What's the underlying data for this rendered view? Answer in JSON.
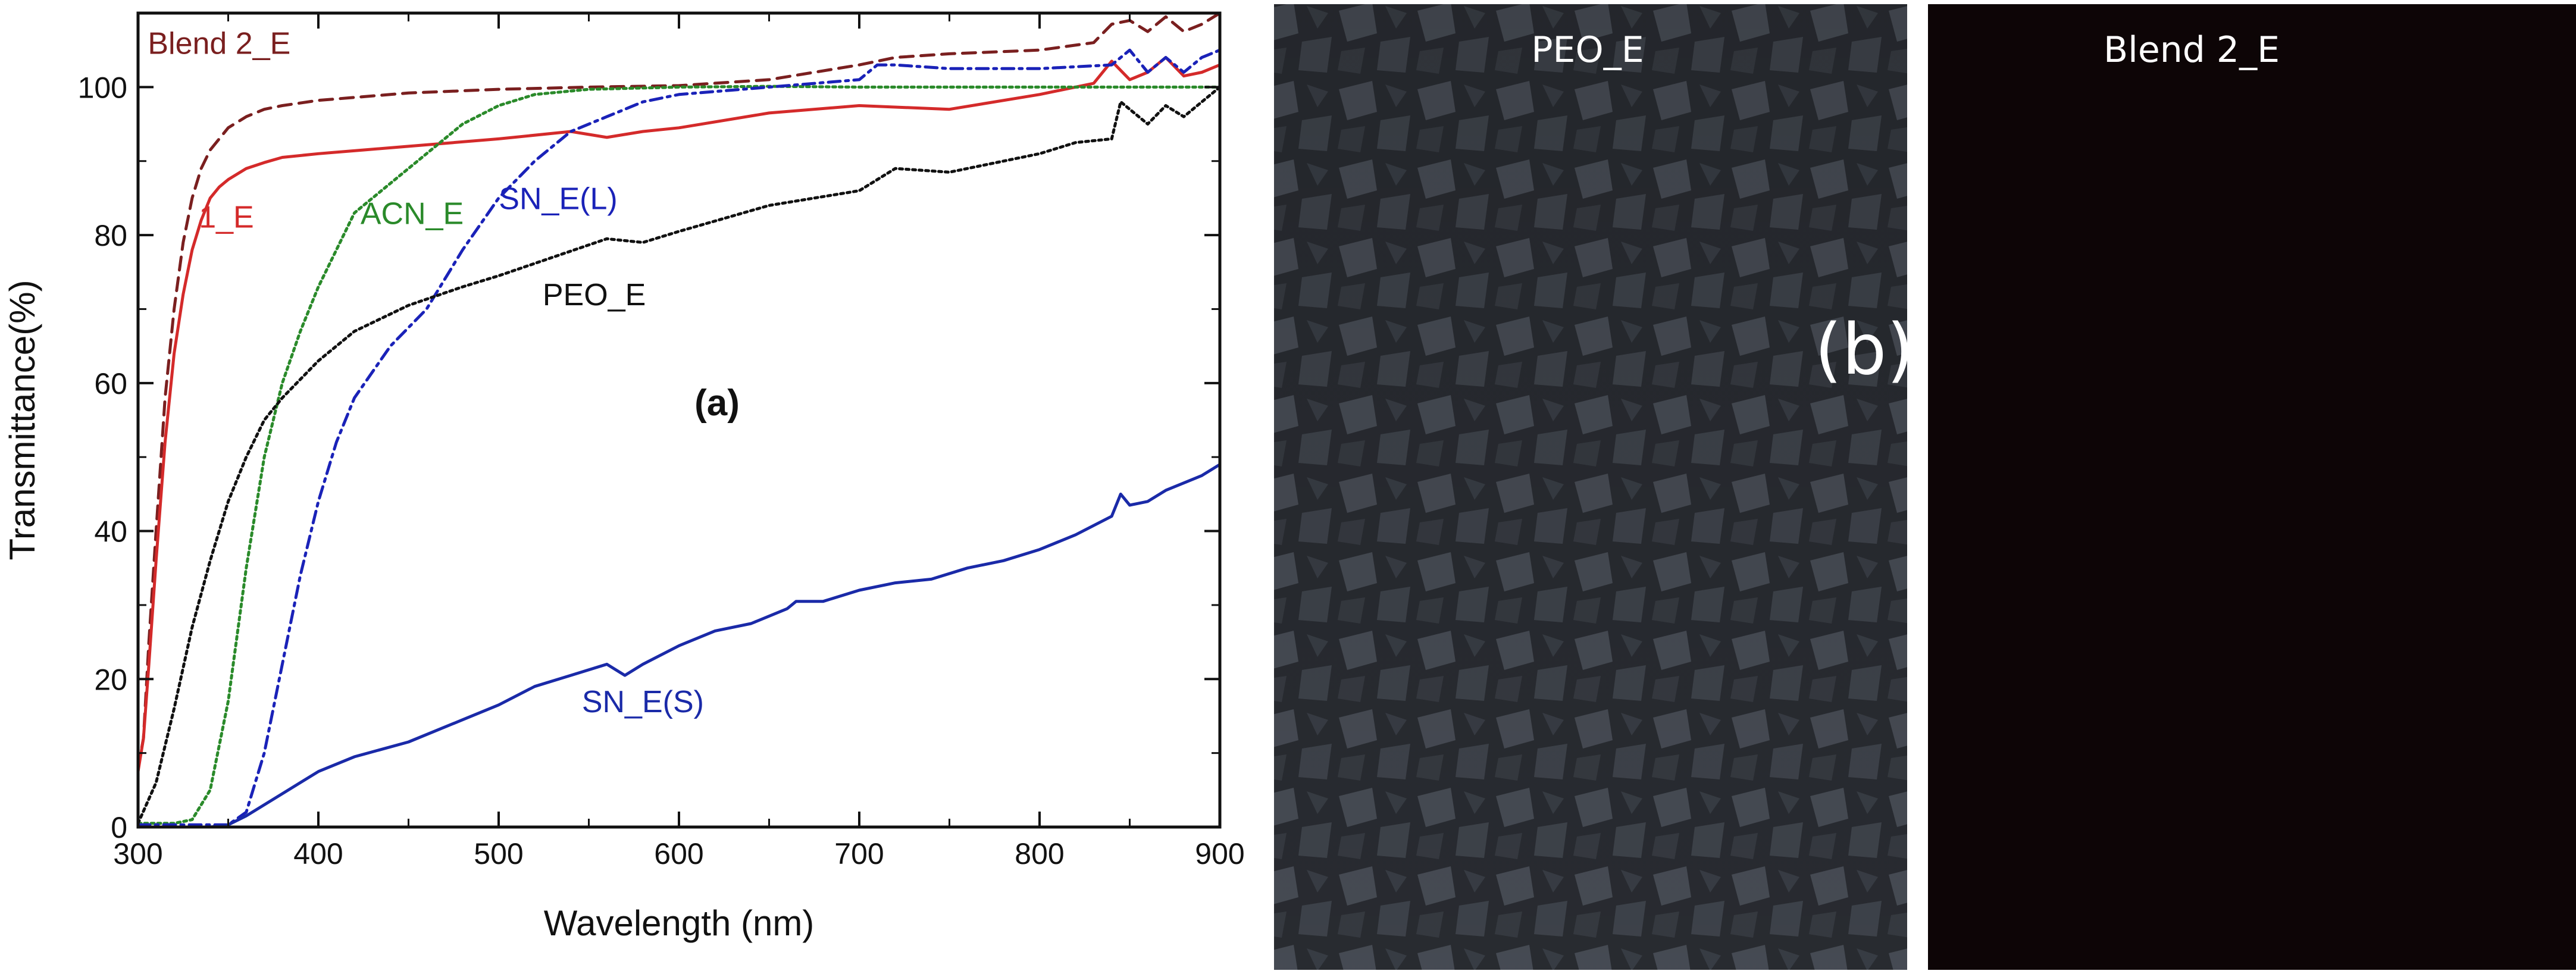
{
  "chart_data": {
    "type": "line",
    "panel_label": "(a)",
    "title": "",
    "xlabel": "Wavelength (nm)",
    "ylabel": "Transmittance(%)",
    "xlim": [
      300,
      900
    ],
    "ylim": [
      0,
      110
    ],
    "xticks": [
      300,
      400,
      500,
      600,
      700,
      800,
      900
    ],
    "yticks": [
      0,
      20,
      40,
      60,
      80,
      100
    ],
    "grid": false,
    "legend": "inline annotations",
    "series": [
      {
        "name": "Blend 2_E",
        "color": "#7a1f1f",
        "dash": "dashed",
        "x": [
          300,
          303,
          306,
          310,
          315,
          320,
          325,
          330,
          335,
          340,
          345,
          350,
          360,
          370,
          380,
          400,
          450,
          500,
          550,
          600,
          650,
          700,
          720,
          750,
          800,
          830,
          840,
          850,
          860,
          870,
          880,
          890,
          900
        ],
        "y": [
          8,
          12,
          25,
          40,
          58,
          70,
          79,
          85,
          89,
          91.5,
          93,
          94.5,
          96,
          97,
          97.5,
          98.2,
          99.2,
          99.7,
          100,
          100.2,
          101,
          103,
          104,
          104.5,
          105,
          106,
          108.5,
          109,
          107.5,
          109.5,
          107.5,
          108.5,
          110
        ]
      },
      {
        "name": "1_E",
        "color": "#d42a2a",
        "dash": "solid",
        "x": [
          300,
          303,
          306,
          310,
          315,
          320,
          325,
          330,
          335,
          340,
          345,
          350,
          360,
          370,
          380,
          400,
          450,
          500,
          540,
          560,
          580,
          600,
          650,
          700,
          750,
          800,
          830,
          840,
          850,
          860,
          870,
          880,
          890,
          900
        ],
        "y": [
          7.5,
          12,
          22,
          36,
          52,
          64,
          72,
          78,
          82,
          85,
          86.5,
          87.5,
          89,
          89.8,
          90.5,
          91,
          92,
          93,
          94,
          93.2,
          94,
          94.5,
          96.5,
          97.5,
          97,
          99,
          100.5,
          103.5,
          101,
          102,
          104,
          101.5,
          102,
          103
        ]
      },
      {
        "name": "ACN_E",
        "color": "#2a8a2a",
        "dash": "dotted",
        "x": [
          300,
          320,
          330,
          340,
          350,
          360,
          370,
          380,
          390,
          400,
          410,
          420,
          440,
          460,
          480,
          500,
          520,
          550,
          600,
          650,
          700,
          750,
          800,
          850,
          900
        ],
        "y": [
          0.5,
          0.5,
          1,
          5,
          17,
          35,
          50,
          60,
          67,
          73,
          78,
          83,
          87,
          91,
          95,
          97.5,
          99,
          99.7,
          100,
          100.1,
          100,
          100,
          100,
          100,
          100
        ]
      },
      {
        "name": "SN_E(L)",
        "color": "#1a22b8",
        "dash": "dashdot",
        "x": [
          300,
          350,
          360,
          370,
          380,
          390,
          400,
          410,
          420,
          440,
          460,
          480,
          500,
          520,
          540,
          560,
          580,
          600,
          650,
          700,
          710,
          720,
          750,
          800,
          840,
          850,
          860,
          870,
          880,
          890,
          900
        ],
        "y": [
          0.3,
          0.3,
          2,
          10,
          22,
          34,
          44,
          52,
          58,
          65,
          70,
          78,
          85,
          90,
          94,
          96,
          98,
          99,
          100,
          101,
          103,
          103,
          102.5,
          102.5,
          103,
          105,
          102,
          104,
          102,
          104,
          105
        ]
      },
      {
        "name": "PEO_E",
        "color": "#111111",
        "dash": "dotted",
        "x": [
          300,
          310,
          320,
          330,
          340,
          350,
          360,
          370,
          380,
          400,
          420,
          450,
          480,
          500,
          530,
          560,
          580,
          600,
          650,
          700,
          720,
          750,
          800,
          820,
          840,
          845,
          860,
          870,
          880,
          890,
          900
        ],
        "y": [
          0.5,
          6,
          16,
          27,
          36,
          44,
          50,
          55,
          58,
          63,
          67,
          70.5,
          73,
          74.5,
          77,
          79.5,
          79,
          80.5,
          84,
          86,
          89,
          88.5,
          91,
          92.5,
          93,
          98,
          95,
          97.5,
          96,
          98,
          100
        ]
      },
      {
        "name": "SN_E(S)",
        "color": "#1a2aa8",
        "dash": "solid",
        "x": [
          300,
          340,
          350,
          360,
          380,
          400,
          420,
          450,
          480,
          500,
          520,
          540,
          560,
          570,
          580,
          600,
          620,
          640,
          660,
          665,
          680,
          700,
          720,
          740,
          760,
          780,
          800,
          820,
          840,
          845,
          850,
          860,
          870,
          880,
          890,
          900
        ],
        "y": [
          0,
          0,
          0.3,
          1.5,
          4.5,
          7.5,
          9.5,
          11.5,
          14.5,
          16.5,
          19,
          20.5,
          22,
          20.5,
          22,
          24.5,
          26.5,
          27.5,
          29.5,
          30.5,
          30.5,
          32,
          33,
          33.5,
          35,
          36,
          37.5,
          39.5,
          42,
          45,
          43.5,
          44,
          45.5,
          46.5,
          47.5,
          49
        ]
      }
    ],
    "annotations": [
      {
        "text": "Blend 2_E",
        "color": "#7a1f1f",
        "at": [
          345,
          104.5
        ],
        "anchor": "middle"
      },
      {
        "text": "1_E",
        "color": "#d42a2a",
        "at": [
          349,
          81
        ],
        "anchor": "middle"
      },
      {
        "text": "ACN_E",
        "color": "#2a8a2a",
        "at": [
          452,
          81.5
        ],
        "anchor": "middle"
      },
      {
        "text": "SN_E(L)",
        "color": "#1a22b8",
        "at": [
          533,
          83.5
        ],
        "anchor": "middle"
      },
      {
        "text": "PEO_E",
        "color": "#111111",
        "at": [
          553,
          70.5
        ],
        "anchor": "middle"
      },
      {
        "text": "SN_E(S)",
        "color": "#1a2aa8",
        "at": [
          580,
          15.5
        ],
        "anchor": "middle"
      }
    ]
  },
  "photos": {
    "panel_label": "(b)",
    "left": {
      "label": "PEO_E",
      "background": "#2a2d33",
      "pattern": "#6c7480"
    },
    "right": {
      "label": "Blend 2_E",
      "background": "#0d0506"
    }
  }
}
